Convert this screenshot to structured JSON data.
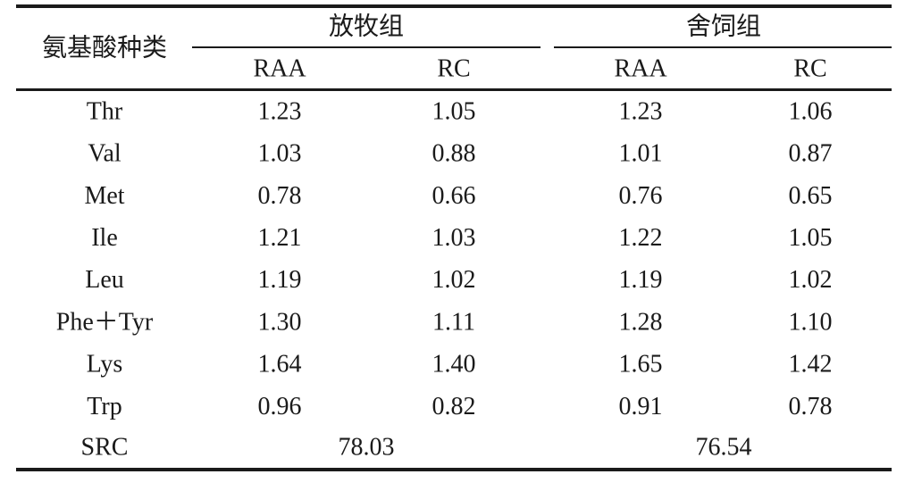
{
  "header": {
    "row_label": "氨基酸种类",
    "groups": [
      "放牧组",
      "舍饲组"
    ],
    "subheaders": [
      "RAA",
      "RC",
      "RAA",
      "RC"
    ]
  },
  "table": {
    "rows": [
      [
        "Thr",
        "1.23",
        "1.05",
        "1.23",
        "1.06"
      ],
      [
        "Val",
        "1.03",
        "0.88",
        "1.01",
        "0.87"
      ],
      [
        "Met",
        "0.78",
        "0.66",
        "0.76",
        "0.65"
      ],
      [
        "Ile",
        "1.21",
        "1.03",
        "1.22",
        "1.05"
      ],
      [
        "Leu",
        "1.19",
        "1.02",
        "1.19",
        "1.02"
      ],
      [
        "Phe＋Tyr",
        "1.30",
        "1.11",
        "1.28",
        "1.10"
      ],
      [
        "Lys",
        "1.64",
        "1.40",
        "1.65",
        "1.42"
      ],
      [
        "Trp",
        "0.96",
        "0.82",
        "0.91",
        "0.78"
      ]
    ]
  },
  "summary": {
    "label": "SRC",
    "values": [
      "78.03",
      "76.54"
    ]
  }
}
